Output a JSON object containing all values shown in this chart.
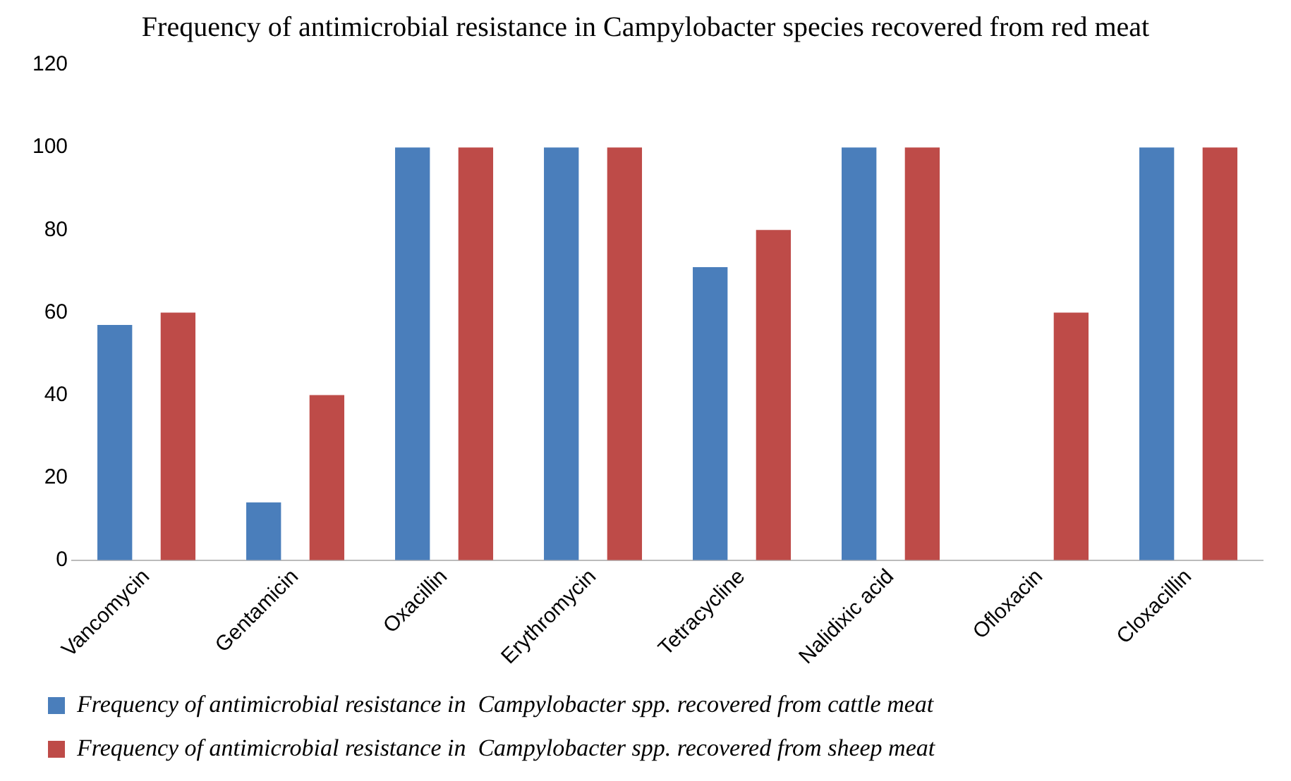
{
  "chart_data": {
    "type": "bar",
    "title": "Frequency of antimicrobial resistance in Campylobacter species recovered from red meat",
    "categories": [
      "Vancomycin",
      "Gentamicin",
      "Oxacillin",
      "Erythromycin",
      "Tetracycline",
      "Nalidixic acid",
      "Ofloxacin",
      "Cloxacillin"
    ],
    "series": [
      {
        "name": "Frequency of antimicrobial resistance in  Campylobacter spp. recovered from cattle meat",
        "color": "#4a7ebb",
        "values": [
          57,
          14,
          100,
          100,
          71,
          100,
          0,
          100
        ]
      },
      {
        "name": "Frequency of antimicrobial resistance in  Campylobacter spp. recovered from sheep meat",
        "color": "#be4b48",
        "values": [
          60,
          40,
          100,
          100,
          80,
          100,
          60,
          100
        ]
      }
    ],
    "ylim": [
      0,
      120
    ],
    "yticks": [
      0,
      20,
      40,
      60,
      80,
      100,
      120
    ],
    "grid": false,
    "legend": "bottom"
  }
}
